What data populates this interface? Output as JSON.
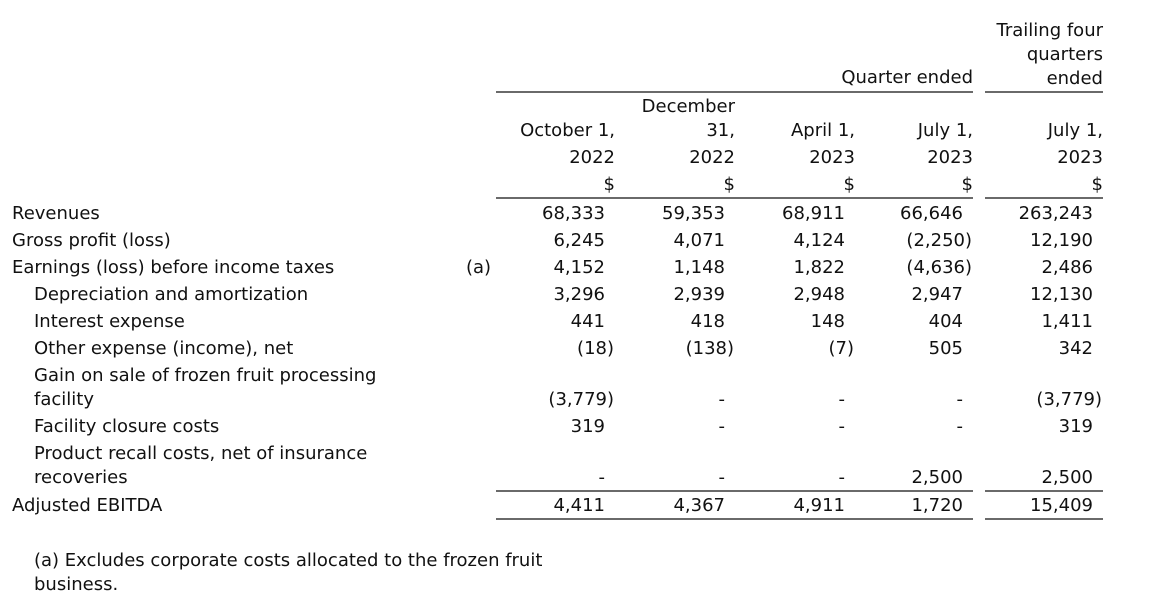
{
  "header": {
    "group": "Quarter ended",
    "trailing": [
      "Trailing four",
      "quarters",
      "ended"
    ]
  },
  "columns": [
    {
      "lines": [
        "October 1,",
        "2022"
      ],
      "unit": "$"
    },
    {
      "lines": [
        "December",
        "31,",
        "2022"
      ],
      "unit": "$"
    },
    {
      "lines": [
        "April 1,",
        "2023"
      ],
      "unit": "$"
    },
    {
      "lines": [
        "July 1,",
        "2023"
      ],
      "unit": "$"
    },
    {
      "lines": [
        "July 1,",
        "2023"
      ],
      "unit": "$"
    }
  ],
  "rows": [
    {
      "label": [
        "Revenues"
      ],
      "values": [
        "68,333",
        "59,353",
        "68,911",
        "66,646",
        "263,243"
      ]
    },
    {
      "label": [
        "Gross profit (loss)"
      ],
      "values": [
        "6,245",
        "4,071",
        "4,124",
        "(2,250)",
        "12,190"
      ]
    },
    {
      "label": [
        "Earnings (loss) before income taxes"
      ],
      "note": "(a)",
      "values": [
        "4,152",
        "1,148",
        "1,822",
        "(4,636)",
        "2,486"
      ]
    }
  ],
  "adjustments": [
    {
      "label": [
        "Depreciation and amortization"
      ],
      "values": [
        "3,296",
        "2,939",
        "2,948",
        "2,947",
        "12,130"
      ]
    },
    {
      "label": [
        "Interest expense"
      ],
      "values": [
        "441",
        "418",
        "148",
        "404",
        "1,411"
      ]
    },
    {
      "label": [
        "Other expense (income), net"
      ],
      "values": [
        "(18)",
        "(138)",
        "(7)",
        "505",
        "342"
      ]
    },
    {
      "label": [
        "Gain on sale of frozen fruit processing",
        "facility"
      ],
      "values": [
        "(3,779)",
        "-",
        "-",
        "-",
        "(3,779)"
      ]
    },
    {
      "label": [
        "Facility closure costs"
      ],
      "values": [
        "319",
        "-",
        "-",
        "-",
        "319"
      ]
    },
    {
      "label": [
        "Product recall costs, net of insurance",
        "recoveries"
      ],
      "values": [
        "-",
        "-",
        "-",
        "2,500",
        "2,500"
      ]
    }
  ],
  "total": {
    "label": [
      "Adjusted EBITDA"
    ],
    "values": [
      "4,411",
      "4,367",
      "4,911",
      "1,720",
      "15,409"
    ]
  },
  "footnote": [
    "(a) Excludes corporate costs allocated to the frozen fruit",
    "business."
  ]
}
